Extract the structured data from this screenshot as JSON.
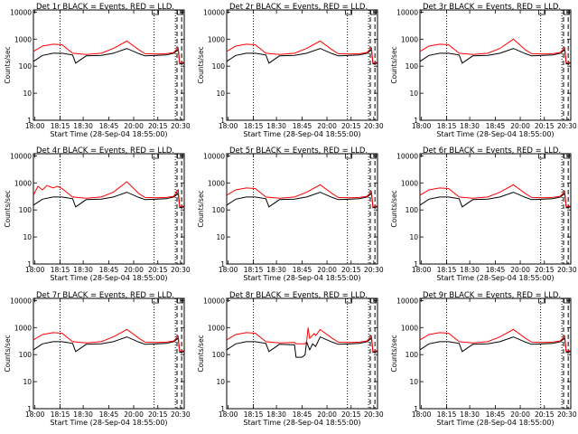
{
  "colors": {
    "events": "#000000",
    "lld": "#ff0000",
    "axes": "#000000"
  },
  "chart_data": [
    {
      "type": "line",
      "title": "Det 1r BLACK = Events, RED = LLD.",
      "xlabel": "Start Time (28-Sep-04 18:55:00)",
      "ylabel": "Counts/sec",
      "x_ticklabels": [
        "18:00",
        "18:15",
        "18:30",
        "18:45",
        "20:00",
        "20:15",
        "20:30"
      ],
      "y_ticklabels": [
        "1",
        "10",
        "100",
        "1000",
        "10000"
      ],
      "ylim": [
        1,
        12000
      ],
      "yscale": "log",
      "vlines": [
        "dotted",
        "dotted",
        "dotted",
        "dashed",
        "dashed"
      ],
      "series": [
        {
          "name": "Events",
          "color": "#000000",
          "x": [
            0,
            0.06,
            0.13,
            0.19,
            0.26,
            0.28,
            0.35,
            0.45,
            0.53,
            0.62,
            0.7,
            0.74,
            0.82,
            0.88,
            0.93,
            0.96,
            0.97,
            1
          ],
          "y": [
            150,
            250,
            300,
            300,
            260,
            130,
            240,
            250,
            300,
            450,
            290,
            240,
            250,
            260,
            300,
            400,
            120,
            130
          ]
        },
        {
          "name": "LLD",
          "color": "#ff0000",
          "x": [
            0,
            0.06,
            0.13,
            0.19,
            0.26,
            0.35,
            0.45,
            0.53,
            0.62,
            0.7,
            0.74,
            0.82,
            0.88,
            0.93,
            0.96,
            0.97,
            1
          ],
          "y": [
            350,
            550,
            650,
            620,
            300,
            270,
            300,
            450,
            850,
            400,
            290,
            280,
            290,
            320,
            480,
            130,
            140
          ]
        }
      ]
    },
    {
      "type": "line",
      "title": "Det 2r BLACK = Events, RED = LLD.",
      "xlabel": "Start Time (28-Sep-04 18:55:00)",
      "ylabel": "Counts/sec",
      "x_ticklabels": [
        "18:00",
        "18:15",
        "18:30",
        "18:45",
        "20:00",
        "20:15",
        "20:30"
      ],
      "y_ticklabels": [
        "1",
        "10",
        "100",
        "1000",
        "10000"
      ],
      "ylim": [
        1,
        12000
      ],
      "yscale": "log",
      "vlines": [
        "dotted",
        "dotted",
        "dotted",
        "dashed",
        "dashed"
      ],
      "series": [
        {
          "name": "Events",
          "color": "#000000",
          "x": [
            0,
            0.06,
            0.13,
            0.19,
            0.26,
            0.28,
            0.35,
            0.45,
            0.53,
            0.62,
            0.7,
            0.74,
            0.82,
            0.88,
            0.93,
            0.96,
            0.97,
            1
          ],
          "y": [
            150,
            250,
            300,
            300,
            260,
            130,
            240,
            250,
            300,
            450,
            290,
            240,
            250,
            260,
            300,
            400,
            120,
            130
          ]
        },
        {
          "name": "LLD",
          "color": "#ff0000",
          "x": [
            0,
            0.06,
            0.13,
            0.19,
            0.26,
            0.35,
            0.45,
            0.53,
            0.62,
            0.7,
            0.74,
            0.82,
            0.88,
            0.93,
            0.96,
            0.97,
            1
          ],
          "y": [
            350,
            550,
            650,
            620,
            300,
            270,
            300,
            450,
            850,
            400,
            290,
            280,
            290,
            320,
            480,
            130,
            140
          ]
        }
      ]
    },
    {
      "type": "line",
      "title": "Det 3r BLACK = Events, RED = LLD.",
      "xlabel": "Start Time (28-Sep-04 18:55:00)",
      "ylabel": "Counts/sec",
      "x_ticklabels": [
        "18:00",
        "18:15",
        "18:30",
        "18:45",
        "20:00",
        "20:15",
        "20:30"
      ],
      "y_ticklabels": [
        "1",
        "10",
        "100",
        "1000",
        "10000"
      ],
      "ylim": [
        1,
        12000
      ],
      "yscale": "log",
      "vlines": [
        "dotted",
        "dotted",
        "dotted",
        "dashed",
        "dashed"
      ],
      "series": [
        {
          "name": "Events",
          "color": "#000000",
          "x": [
            0,
            0.06,
            0.13,
            0.19,
            0.26,
            0.28,
            0.35,
            0.45,
            0.53,
            0.62,
            0.7,
            0.74,
            0.82,
            0.88,
            0.93,
            0.96,
            0.97,
            1
          ],
          "y": [
            150,
            250,
            300,
            300,
            260,
            130,
            240,
            250,
            300,
            450,
            290,
            240,
            250,
            260,
            300,
            400,
            120,
            130
          ]
        },
        {
          "name": "LLD",
          "color": "#ff0000",
          "x": [
            0,
            0.06,
            0.13,
            0.19,
            0.26,
            0.35,
            0.45,
            0.53,
            0.62,
            0.7,
            0.74,
            0.82,
            0.88,
            0.93,
            0.96,
            0.97,
            1
          ],
          "y": [
            350,
            550,
            650,
            620,
            300,
            270,
            300,
            450,
            1000,
            400,
            290,
            280,
            290,
            320,
            480,
            130,
            140
          ]
        }
      ]
    },
    {
      "type": "line",
      "title": "Det 4r BLACK = Events, RED = LLD.",
      "xlabel": "Start Time (28-Sep-04 18:55:00)",
      "ylabel": "Counts/sec",
      "x_ticklabels": [
        "18:00",
        "18:15",
        "18:30",
        "18:45",
        "20:00",
        "20:15",
        "20:30"
      ],
      "y_ticklabels": [
        "1",
        "10",
        "100",
        "1000",
        "10000"
      ],
      "ylim": [
        1,
        12000
      ],
      "yscale": "log",
      "vlines": [
        "dotted",
        "dotted",
        "dotted",
        "dashed",
        "dashed"
      ],
      "series": [
        {
          "name": "Events",
          "color": "#000000",
          "x": [
            0,
            0.06,
            0.13,
            0.19,
            0.26,
            0.28,
            0.35,
            0.45,
            0.53,
            0.62,
            0.7,
            0.74,
            0.82,
            0.88,
            0.93,
            0.96,
            0.97,
            1
          ],
          "y": [
            150,
            250,
            300,
            300,
            260,
            130,
            240,
            250,
            300,
            450,
            290,
            240,
            250,
            260,
            300,
            400,
            120,
            130
          ]
        },
        {
          "name": "LLD",
          "color": "#ff0000",
          "x": [
            0,
            0.03,
            0.06,
            0.09,
            0.13,
            0.16,
            0.19,
            0.26,
            0.35,
            0.45,
            0.53,
            0.62,
            0.7,
            0.74,
            0.82,
            0.88,
            0.93,
            0.96,
            0.97,
            1
          ],
          "y": [
            350,
            750,
            550,
            800,
            650,
            750,
            620,
            300,
            270,
            300,
            450,
            1100,
            400,
            290,
            280,
            290,
            320,
            550,
            130,
            140
          ]
        }
      ]
    },
    {
      "type": "line",
      "title": "Det 5r BLACK = Events, RED = LLD.",
      "xlabel": "Start Time (28-Sep-04 18:55:00)",
      "ylabel": "Counts/sec",
      "x_ticklabels": [
        "18:00",
        "18:15",
        "18:30",
        "18:45",
        "20:00",
        "20:15",
        "20:30"
      ],
      "y_ticklabels": [
        "1",
        "10",
        "100",
        "1000",
        "10000"
      ],
      "ylim": [
        1,
        12000
      ],
      "yscale": "log",
      "vlines": [
        "dotted",
        "dotted",
        "dotted",
        "dashed",
        "dashed"
      ],
      "series": [
        {
          "name": "Events",
          "color": "#000000",
          "x": [
            0,
            0.06,
            0.13,
            0.19,
            0.26,
            0.28,
            0.35,
            0.45,
            0.53,
            0.62,
            0.7,
            0.74,
            0.82,
            0.88,
            0.93,
            0.96,
            0.97,
            1
          ],
          "y": [
            150,
            250,
            300,
            300,
            260,
            130,
            240,
            250,
            300,
            450,
            290,
            240,
            250,
            260,
            300,
            400,
            120,
            130
          ]
        },
        {
          "name": "LLD",
          "color": "#ff0000",
          "x": [
            0,
            0.06,
            0.13,
            0.19,
            0.26,
            0.35,
            0.45,
            0.53,
            0.62,
            0.7,
            0.74,
            0.82,
            0.88,
            0.93,
            0.96,
            0.97,
            1
          ],
          "y": [
            350,
            550,
            650,
            620,
            300,
            270,
            300,
            450,
            850,
            400,
            290,
            280,
            290,
            320,
            480,
            130,
            140
          ]
        }
      ]
    },
    {
      "type": "line",
      "title": "Det 6r BLACK = Events, RED = LLD.",
      "xlabel": "Start Time (28-Sep-04 18:55:00)",
      "ylabel": "Counts/sec",
      "x_ticklabels": [
        "18:00",
        "18:15",
        "18:30",
        "18:45",
        "20:00",
        "20:15",
        "20:30"
      ],
      "y_ticklabels": [
        "1",
        "10",
        "100",
        "1000",
        "10000"
      ],
      "ylim": [
        1,
        12000
      ],
      "yscale": "log",
      "vlines": [
        "dotted",
        "dotted",
        "dotted",
        "dashed",
        "dashed"
      ],
      "series": [
        {
          "name": "Events",
          "color": "#000000",
          "x": [
            0,
            0.06,
            0.13,
            0.19,
            0.26,
            0.28,
            0.35,
            0.45,
            0.53,
            0.62,
            0.7,
            0.74,
            0.82,
            0.88,
            0.93,
            0.96,
            0.97,
            1
          ],
          "y": [
            150,
            250,
            300,
            300,
            260,
            130,
            240,
            250,
            300,
            450,
            290,
            240,
            250,
            260,
            300,
            400,
            120,
            130
          ]
        },
        {
          "name": "LLD",
          "color": "#ff0000",
          "x": [
            0,
            0.06,
            0.13,
            0.19,
            0.26,
            0.35,
            0.45,
            0.53,
            0.62,
            0.7,
            0.74,
            0.82,
            0.88,
            0.93,
            0.96,
            0.97,
            1
          ],
          "y": [
            350,
            550,
            650,
            620,
            300,
            270,
            300,
            450,
            850,
            400,
            290,
            280,
            290,
            320,
            480,
            130,
            140
          ]
        }
      ]
    },
    {
      "type": "line",
      "title": "Det 7r BLACK = Events, RED = LLD.",
      "xlabel": "Start Time (28-Sep-04 18:55:00)",
      "ylabel": "Counts/sec",
      "x_ticklabels": [
        "18:00",
        "18:15",
        "18:30",
        "18:45",
        "20:00",
        "20:15",
        "20:30"
      ],
      "y_ticklabels": [
        "1",
        "10",
        "100",
        "1000",
        "10000"
      ],
      "ylim": [
        1,
        12000
      ],
      "yscale": "log",
      "vlines": [
        "dotted",
        "dotted",
        "dotted",
        "dashed",
        "dashed"
      ],
      "series": [
        {
          "name": "Events",
          "color": "#000000",
          "x": [
            0,
            0.06,
            0.13,
            0.19,
            0.26,
            0.28,
            0.35,
            0.45,
            0.53,
            0.62,
            0.7,
            0.74,
            0.82,
            0.88,
            0.93,
            0.96,
            0.97,
            1
          ],
          "y": [
            150,
            250,
            300,
            300,
            260,
            130,
            240,
            250,
            300,
            450,
            290,
            240,
            250,
            260,
            300,
            400,
            120,
            130
          ]
        },
        {
          "name": "LLD",
          "color": "#ff0000",
          "x": [
            0,
            0.06,
            0.13,
            0.19,
            0.26,
            0.35,
            0.45,
            0.53,
            0.62,
            0.7,
            0.74,
            0.82,
            0.88,
            0.93,
            0.96,
            0.97,
            1
          ],
          "y": [
            350,
            550,
            650,
            620,
            300,
            270,
            300,
            450,
            850,
            400,
            290,
            280,
            290,
            320,
            480,
            130,
            140
          ]
        }
      ]
    },
    {
      "type": "line",
      "title": "Det 8r BLACK = Events, RED = LLD.",
      "xlabel": "Start Time (28-Sep-04 18:55:00)",
      "ylabel": "Counts/sec",
      "x_ticklabels": [
        "18:00",
        "18:15",
        "18:30",
        "18:45",
        "20:00",
        "20:15",
        "20:30"
      ],
      "y_ticklabels": [
        "1",
        "10",
        "100",
        "1000",
        "10000"
      ],
      "ylim": [
        1,
        12000
      ],
      "yscale": "log",
      "vlines": [
        "dotted",
        "dotted",
        "dotted",
        "dashed",
        "dashed"
      ],
      "series": [
        {
          "name": "Events",
          "color": "#000000",
          "x": [
            0,
            0.06,
            0.13,
            0.19,
            0.26,
            0.28,
            0.35,
            0.45,
            0.46,
            0.5,
            0.52,
            0.53,
            0.55,
            0.57,
            0.59,
            0.62,
            0.7,
            0.74,
            0.82,
            0.88,
            0.93,
            0.96,
            0.97,
            1
          ],
          "y": [
            150,
            250,
            300,
            300,
            260,
            130,
            240,
            230,
            80,
            80,
            100,
            300,
            150,
            250,
            200,
            450,
            290,
            240,
            250,
            260,
            300,
            400,
            120,
            130
          ]
        },
        {
          "name": "LLD",
          "color": "#ff0000",
          "x": [
            0,
            0.06,
            0.13,
            0.19,
            0.26,
            0.35,
            0.45,
            0.46,
            0.52,
            0.53,
            0.54,
            0.55,
            0.58,
            0.59,
            0.62,
            0.7,
            0.74,
            0.82,
            0.88,
            0.93,
            0.96,
            0.97,
            1
          ],
          "y": [
            350,
            550,
            650,
            620,
            300,
            270,
            280,
            250,
            250,
            300,
            1000,
            400,
            600,
            500,
            850,
            400,
            290,
            280,
            290,
            320,
            480,
            130,
            140
          ]
        }
      ]
    },
    {
      "type": "line",
      "title": "Det 9r BLACK = Events, RED = LLD.",
      "xlabel": "Start Time (28-Sep-04 18:55:00)",
      "ylabel": "Counts/sec",
      "x_ticklabels": [
        "18:00",
        "18:15",
        "18:30",
        "18:45",
        "20:00",
        "20:15",
        "20:30"
      ],
      "y_ticklabels": [
        "1",
        "10",
        "100",
        "1000",
        "10000"
      ],
      "ylim": [
        1,
        12000
      ],
      "yscale": "log",
      "vlines": [
        "dotted",
        "dotted",
        "dotted",
        "dashed",
        "dashed"
      ],
      "series": [
        {
          "name": "Events",
          "color": "#000000",
          "x": [
            0,
            0.06,
            0.13,
            0.19,
            0.26,
            0.28,
            0.35,
            0.45,
            0.53,
            0.62,
            0.7,
            0.74,
            0.82,
            0.88,
            0.93,
            0.96,
            0.97,
            1
          ],
          "y": [
            150,
            250,
            300,
            300,
            260,
            130,
            240,
            250,
            300,
            450,
            290,
            240,
            250,
            260,
            300,
            400,
            120,
            130
          ]
        },
        {
          "name": "LLD",
          "color": "#ff0000",
          "x": [
            0,
            0.06,
            0.13,
            0.19,
            0.26,
            0.35,
            0.45,
            0.53,
            0.62,
            0.7,
            0.74,
            0.82,
            0.88,
            0.93,
            0.96,
            0.97,
            1
          ],
          "y": [
            350,
            550,
            650,
            620,
            300,
            270,
            300,
            450,
            850,
            400,
            290,
            280,
            290,
            320,
            480,
            130,
            140
          ]
        }
      ]
    }
  ]
}
